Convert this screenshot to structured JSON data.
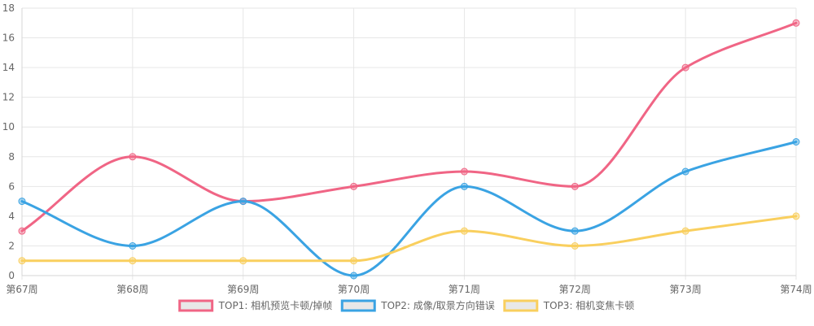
{
  "chart_data": {
    "type": "line",
    "title": "",
    "xlabel": "",
    "ylabel": "",
    "ylim": [
      0,
      18
    ],
    "y_tick_step": 2,
    "grid": true,
    "legend_position": "bottom",
    "curve": "smooth",
    "categories": [
      "第67周",
      "第68周",
      "第69周",
      "第70周",
      "第71周",
      "第72周",
      "第73周",
      "第74周"
    ],
    "series": [
      {
        "name": "TOP1: 相机预览卡顿/掉帧",
        "color": "#f06585",
        "values": [
          3,
          8,
          5,
          6,
          7,
          6,
          14,
          17
        ]
      },
      {
        "name": "TOP2: 成像/取景方向错误",
        "color": "#3aa3e3",
        "values": [
          5,
          2,
          5,
          0,
          6,
          3,
          7,
          9
        ]
      },
      {
        "name": "TOP3: 相机变焦卡顿",
        "color": "#f9cf5e",
        "values": [
          1,
          1,
          1,
          1,
          3,
          2,
          3,
          4
        ]
      }
    ]
  }
}
